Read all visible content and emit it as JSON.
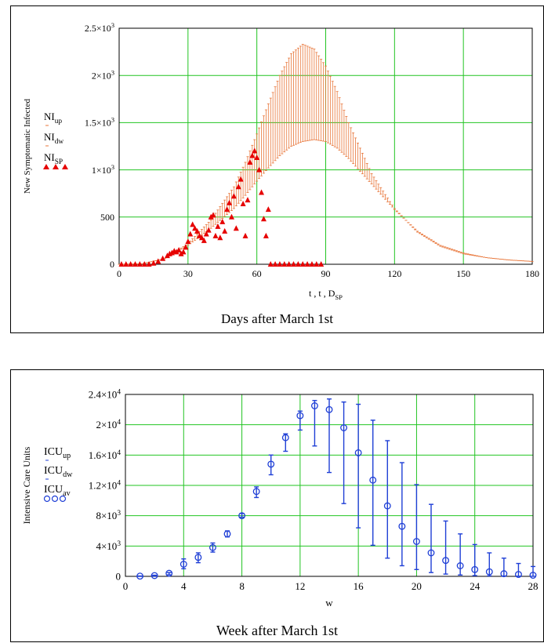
{
  "chart_data": [
    {
      "type": "line",
      "xlabel": "t , t , D",
      "xlabel_sub": "SP",
      "caption": "Days after March 1st",
      "ylabel": "New Symptomatic Infected",
      "xlim": [
        0,
        180
      ],
      "ylim": [
        0,
        2500
      ],
      "grid": true,
      "legend_position": "left",
      "x_ticks": [
        0,
        30,
        60,
        90,
        120,
        150,
        180
      ],
      "y_ticks": [
        {
          "value": 0,
          "base": "0",
          "exp": ""
        },
        {
          "value": 500,
          "base": "500",
          "exp": ""
        },
        {
          "value": 1000,
          "base": "1×10",
          "exp": "3"
        },
        {
          "value": 1500,
          "base": "1.5×10",
          "exp": "3"
        },
        {
          "value": 2000,
          "base": "2×10",
          "exp": "3"
        },
        {
          "value": 2500,
          "base": "2.5×10",
          "exp": "3"
        }
      ],
      "legend": [
        {
          "base": "NI",
          "sub": "up",
          "marker": "errorbar-top",
          "color": "#e8763a"
        },
        {
          "base": "NI",
          "sub": "dw",
          "marker": "errorbar-bottom",
          "color": "#e8763a"
        },
        {
          "base": "NI",
          "sub": "SP",
          "marker": "triangle",
          "color": "#e60000"
        }
      ],
      "series": [
        {
          "name": "NI_up",
          "x": [
            0,
            10,
            20,
            30,
            40,
            50,
            55,
            60,
            65,
            70,
            75,
            80,
            85,
            90,
            95,
            100,
            110,
            120,
            130,
            140,
            150,
            160,
            170,
            180
          ],
          "values": [
            0,
            5,
            60,
            220,
            470,
            820,
            1080,
            1380,
            1700,
            2000,
            2230,
            2330,
            2280,
            2100,
            1830,
            1500,
            960,
            590,
            340,
            190,
            110,
            70,
            45,
            30
          ]
        },
        {
          "name": "NI_dw",
          "x": [
            0,
            10,
            20,
            30,
            40,
            50,
            55,
            60,
            65,
            70,
            75,
            80,
            85,
            90,
            95,
            100,
            110,
            120,
            130,
            140,
            150,
            160,
            170,
            180
          ],
          "values": [
            0,
            5,
            60,
            200,
            380,
            590,
            730,
            880,
            1020,
            1150,
            1250,
            1300,
            1320,
            1300,
            1230,
            1120,
            850,
            580,
            350,
            200,
            120,
            70,
            45,
            30
          ]
        },
        {
          "name": "NI_SP",
          "x": [
            1,
            3,
            5,
            7,
            9,
            11,
            13,
            15,
            17,
            19,
            21,
            22,
            23,
            24,
            25,
            26,
            27,
            28,
            29,
            30,
            31,
            32,
            33,
            34,
            35,
            36,
            37,
            38,
            39,
            40,
            41,
            42,
            43,
            44,
            45,
            46,
            47,
            48,
            49,
            50,
            51,
            52,
            53,
            54,
            55,
            56,
            57,
            58,
            59,
            60,
            61,
            62,
            63,
            64,
            65,
            66,
            68,
            70,
            72,
            74,
            76,
            78,
            80,
            82,
            84,
            86,
            88
          ],
          "values": [
            0,
            0,
            0,
            0,
            0,
            0,
            0,
            10,
            30,
            60,
            90,
            110,
            120,
            140,
            130,
            150,
            110,
            130,
            180,
            240,
            320,
            420,
            380,
            350,
            300,
            280,
            250,
            320,
            360,
            500,
            520,
            300,
            400,
            280,
            450,
            350,
            580,
            650,
            500,
            720,
            380,
            820,
            900,
            640,
            300,
            680,
            1080,
            1150,
            1200,
            1130,
            1000,
            760,
            480,
            300,
            580,
            0,
            0,
            0,
            0,
            0,
            0,
            0,
            0,
            0,
            0,
            0,
            0
          ]
        }
      ]
    },
    {
      "type": "scatter",
      "xlabel": "w",
      "caption": "Week after March 1st",
      "ylabel": "Intensive Care Units",
      "xlim": [
        0,
        28
      ],
      "ylim": [
        0,
        24000
      ],
      "grid": true,
      "legend_position": "left",
      "x_ticks": [
        0,
        4,
        8,
        12,
        16,
        20,
        24,
        28
      ],
      "y_ticks": [
        {
          "value": 0,
          "base": "0",
          "exp": ""
        },
        {
          "value": 4000,
          "base": "4×10",
          "exp": "3"
        },
        {
          "value": 8000,
          "base": "8×10",
          "exp": "3"
        },
        {
          "value": 12000,
          "base": "1.2×10",
          "exp": "4"
        },
        {
          "value": 16000,
          "base": "1.6×10",
          "exp": "4"
        },
        {
          "value": 20000,
          "base": "2×10",
          "exp": "4"
        },
        {
          "value": 24000,
          "base": "2.4×10",
          "exp": "4"
        }
      ],
      "legend": [
        {
          "base": "ICU",
          "sub": "up",
          "marker": "errorbar-top",
          "color": "#1f3fd6"
        },
        {
          "base": "ICU",
          "sub": "dw",
          "marker": "errorbar-bottom",
          "color": "#1f3fd6"
        },
        {
          "base": "ICU",
          "sub": "av",
          "marker": "circle",
          "color": "#1f3fd6"
        }
      ],
      "series": [
        {
          "name": "ICU_up",
          "x": [
            1,
            2,
            3,
            4,
            5,
            6,
            7,
            8,
            9,
            10,
            11,
            12,
            13,
            14,
            15,
            16,
            17,
            18,
            19,
            20,
            21,
            22,
            23,
            24,
            25,
            26,
            27,
            28
          ],
          "values": [
            50,
            150,
            500,
            2300,
            3100,
            4400,
            6000,
            8300,
            11800,
            16000,
            18800,
            21800,
            23200,
            23400,
            23000,
            22700,
            20600,
            17900,
            15000,
            12100,
            9500,
            7300,
            5600,
            4200,
            3100,
            2400,
            1700,
            1300
          ]
        },
        {
          "name": "ICU_dw",
          "x": [
            1,
            2,
            3,
            4,
            5,
            6,
            7,
            8,
            9,
            10,
            11,
            12,
            13,
            14,
            15,
            16,
            17,
            18,
            19,
            20,
            21,
            22,
            23,
            24,
            25,
            26,
            27,
            28
          ],
          "values": [
            0,
            50,
            200,
            1000,
            1800,
            3200,
            5200,
            7800,
            10400,
            13400,
            16500,
            19300,
            17200,
            13700,
            9600,
            6400,
            4100,
            2400,
            1400,
            900,
            500,
            300,
            180,
            100,
            60,
            40,
            20,
            10
          ]
        },
        {
          "name": "ICU_av",
          "x": [
            1,
            2,
            3,
            4,
            5,
            6,
            7,
            8,
            9,
            10,
            11,
            12,
            13,
            14,
            15,
            16,
            17,
            18,
            19,
            20,
            21,
            22,
            23,
            24,
            25,
            26,
            27,
            28
          ],
          "values": [
            30,
            100,
            400,
            1600,
            2500,
            3800,
            5600,
            8000,
            11200,
            14800,
            18300,
            21200,
            22500,
            22000,
            19600,
            16300,
            12700,
            9300,
            6600,
            4600,
            3100,
            2100,
            1400,
            900,
            600,
            350,
            250,
            150
          ]
        }
      ]
    }
  ]
}
